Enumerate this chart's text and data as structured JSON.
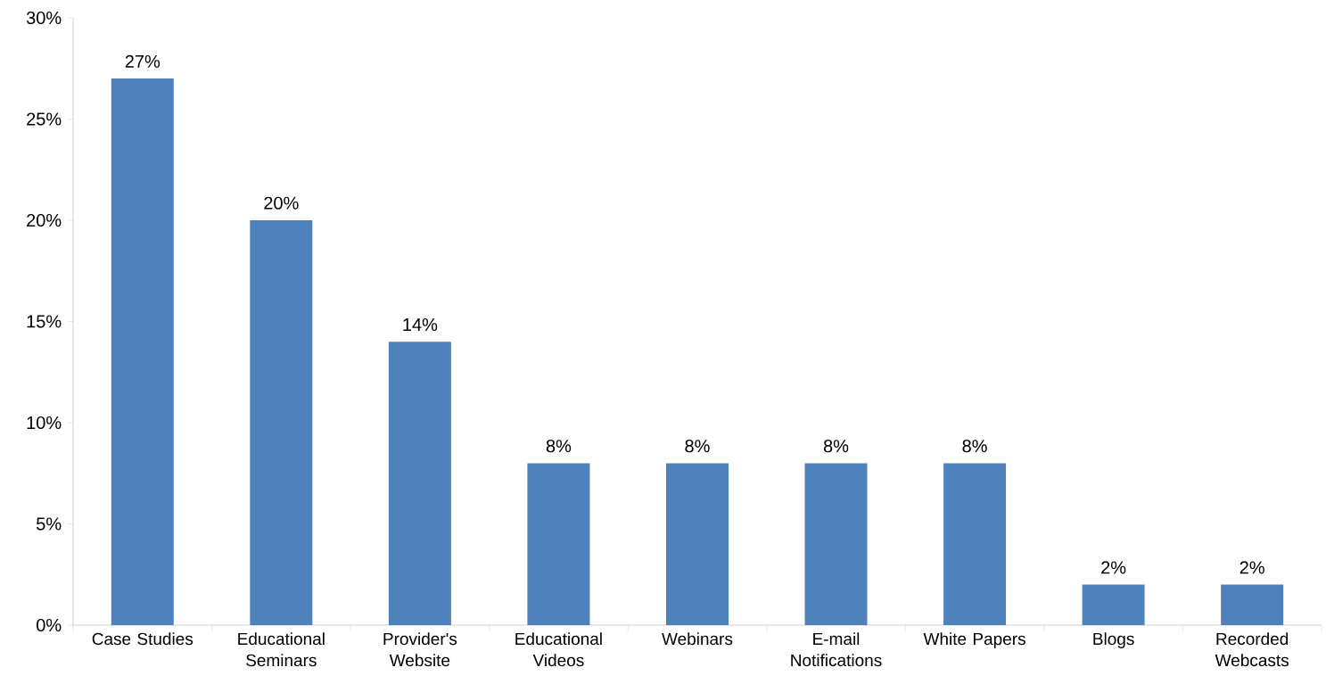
{
  "chart_data": {
    "type": "bar",
    "categories": [
      "Case Studies",
      "Educational Seminars",
      "Provider's Website",
      "Educational Videos",
      "Webinars",
      "E-mail Notifications",
      "White Papers",
      "Blogs",
      "Recorded Webcasts"
    ],
    "values": [
      27,
      20,
      14,
      8,
      8,
      8,
      8,
      2,
      2
    ],
    "value_labels": [
      "27%",
      "20%",
      "14%",
      "8%",
      "8%",
      "8%",
      "8%",
      "2%",
      "2%"
    ],
    "color": "#4f81bd",
    "ylim": [
      0,
      30
    ],
    "yticks": [
      {
        "value": 0,
        "label": "0%"
      },
      {
        "value": 5,
        "label": "5%"
      },
      {
        "value": 10,
        "label": "10%"
      },
      {
        "value": 15,
        "label": "15%"
      },
      {
        "value": 20,
        "label": "20%"
      },
      {
        "value": 25,
        "label": "25%"
      },
      {
        "value": 30,
        "label": "30%"
      }
    ],
    "grid": false
  }
}
